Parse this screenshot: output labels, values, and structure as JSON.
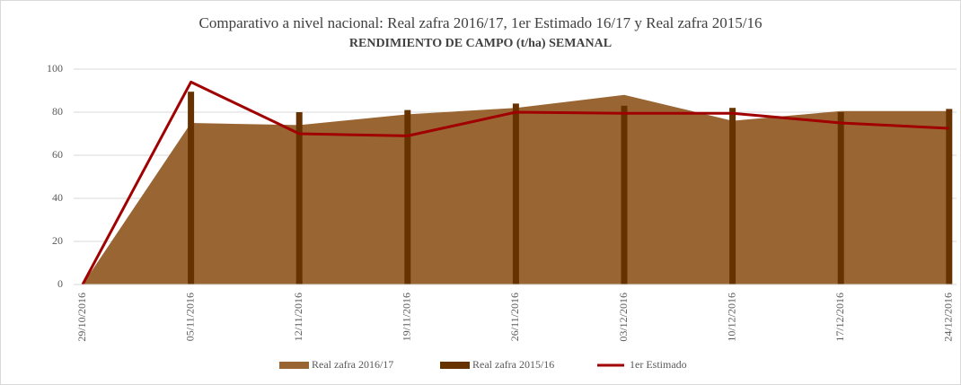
{
  "chart_data": {
    "type": "combo",
    "title": "Comparativo a nivel nacional: Real zafra 2016/17, 1er Estimado 16/17 y Real zafra 2015/16",
    "subtitle": "RENDIMIENTO DE CAMPO (t/ha) SEMANAL",
    "categories": [
      "29/10/2016",
      "05/11/2016",
      "12/11/2016",
      "19/11/2016",
      "26/11/2016",
      "03/12/2016",
      "10/12/2016",
      "17/12/2016",
      "24/12/2016"
    ],
    "series": [
      {
        "name": "Real zafra 2016/17",
        "kind": "area",
        "color": "#996633",
        "values": [
          0,
          75,
          74,
          79,
          82,
          88,
          76,
          80.5,
          80.5
        ]
      },
      {
        "name": "Real zafra 2015/16",
        "kind": "bar",
        "color": "#663300",
        "values": [
          0,
          89.5,
          80,
          81,
          84,
          83,
          82,
          80,
          81.5
        ]
      },
      {
        "name": "1er Estimado",
        "kind": "line",
        "color": "#a00000",
        "values": [
          0,
          94,
          70,
          69,
          80,
          79.5,
          79.5,
          75,
          72.5
        ]
      }
    ],
    "ylim": [
      0,
      100
    ],
    "yticks": [
      0,
      20,
      40,
      60,
      80,
      100
    ],
    "grid": true,
    "legend": "bottom"
  }
}
